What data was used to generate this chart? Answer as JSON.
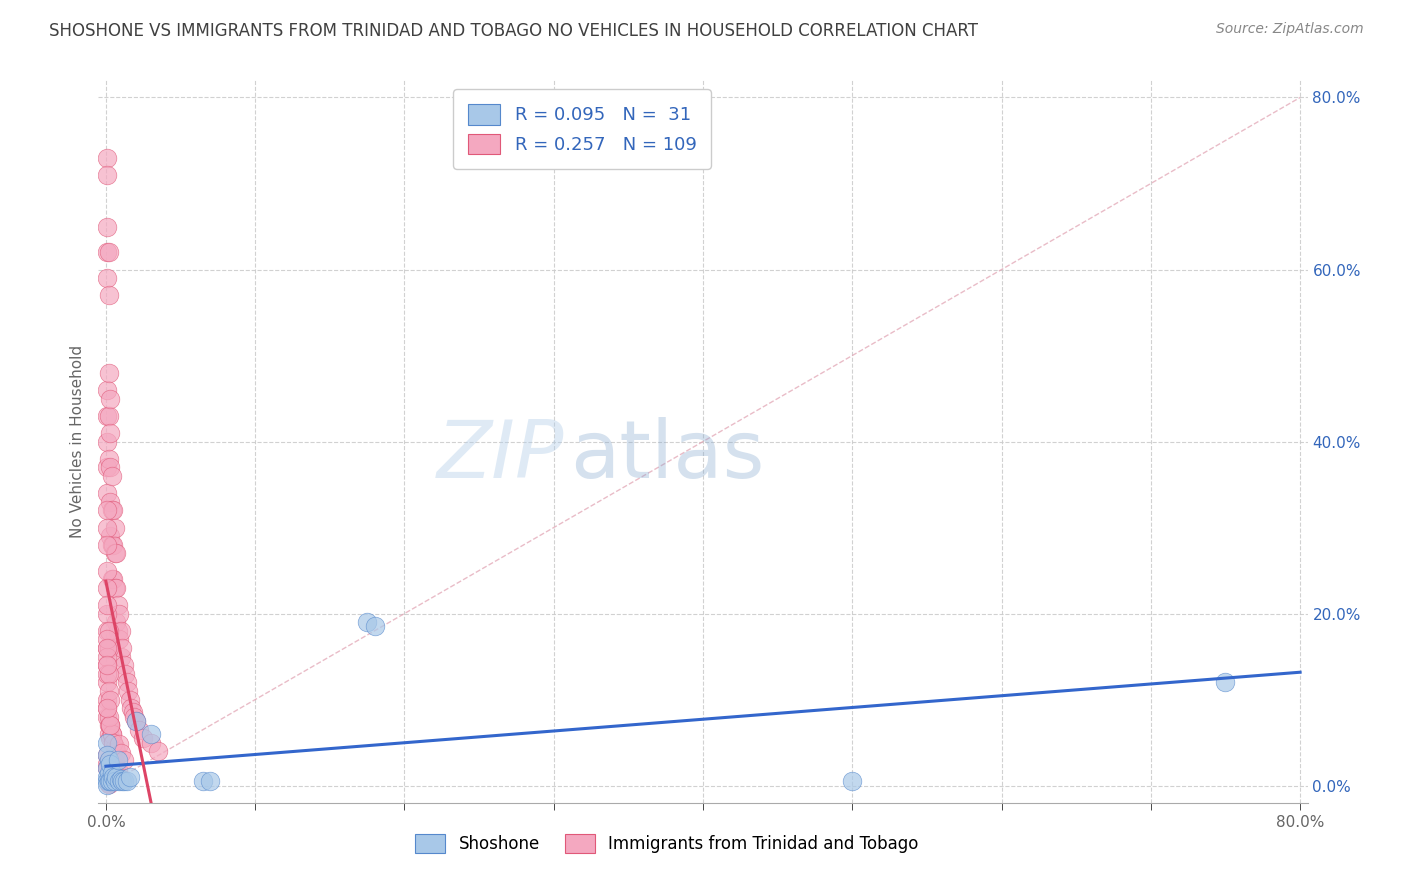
{
  "title": "SHOSHONE VS IMMIGRANTS FROM TRINIDAD AND TOBAGO NO VEHICLES IN HOUSEHOLD CORRELATION CHART",
  "source": "Source: ZipAtlas.com",
  "xlabel_bottom": [
    "Shoshone",
    "Immigrants from Trinidad and Tobago"
  ],
  "ylabel": "No Vehicles in Household",
  "xmin": 0.0,
  "xmax": 0.8,
  "ymin": 0.0,
  "ymax": 0.8,
  "right_yticks": [
    0.0,
    0.2,
    0.4,
    0.6,
    0.8
  ],
  "right_ytick_labels": [
    "0.0%",
    "20.0%",
    "40.0%",
    "60.0%",
    "80.0%"
  ],
  "shoshone_color": "#a8c8e8",
  "tt_color": "#f4a8c0",
  "shoshone_edge": "#5588cc",
  "tt_edge": "#e05878",
  "line_blue": "#3366cc",
  "line_pink": "#dd4466",
  "diag_color": "#e0a0b0",
  "R_shoshone": 0.095,
  "N_shoshone": 31,
  "R_tt": 0.257,
  "N_tt": 109,
  "watermark_zip": "ZIP",
  "watermark_atlas": "atlas",
  "background": "#ffffff",
  "grid_color": "#cccccc",
  "title_color": "#404040",
  "right_axis_color": "#3366bb",
  "shoshone_x": [
    0.001,
    0.001,
    0.001,
    0.001,
    0.001,
    0.001,
    0.002,
    0.002,
    0.002,
    0.003,
    0.003,
    0.004,
    0.004,
    0.005,
    0.006,
    0.007,
    0.008,
    0.009,
    0.01,
    0.011,
    0.012,
    0.014,
    0.016,
    0.02,
    0.03,
    0.065,
    0.07,
    0.175,
    0.18,
    0.5,
    0.75
  ],
  "shoshone_y": [
    0.05,
    0.035,
    0.02,
    0.01,
    0.005,
    0.001,
    0.03,
    0.015,
    0.005,
    0.025,
    0.005,
    0.015,
    0.005,
    0.01,
    0.005,
    0.01,
    0.03,
    0.005,
    0.008,
    0.005,
    0.005,
    0.005,
    0.01,
    0.075,
    0.06,
    0.005,
    0.005,
    0.19,
    0.185,
    0.005,
    0.12
  ],
  "tt_x": [
    0.001,
    0.001,
    0.001,
    0.001,
    0.001,
    0.001,
    0.001,
    0.001,
    0.001,
    0.001,
    0.002,
    0.002,
    0.002,
    0.002,
    0.002,
    0.003,
    0.003,
    0.003,
    0.003,
    0.003,
    0.004,
    0.004,
    0.004,
    0.004,
    0.005,
    0.005,
    0.005,
    0.006,
    0.006,
    0.006,
    0.007,
    0.007,
    0.007,
    0.008,
    0.008,
    0.009,
    0.009,
    0.01,
    0.01,
    0.011,
    0.012,
    0.013,
    0.014,
    0.015,
    0.016,
    0.017,
    0.018,
    0.019,
    0.02,
    0.022,
    0.025,
    0.03,
    0.035,
    0.001,
    0.001,
    0.001,
    0.001,
    0.001,
    0.002,
    0.002,
    0.003,
    0.003,
    0.004,
    0.005,
    0.006,
    0.007,
    0.001,
    0.001,
    0.002,
    0.002,
    0.001,
    0.001,
    0.001,
    0.003,
    0.004,
    0.005,
    0.001,
    0.001,
    0.002,
    0.001,
    0.001,
    0.001,
    0.002,
    0.003,
    0.004,
    0.001,
    0.002,
    0.003,
    0.001,
    0.001,
    0.001,
    0.002,
    0.003,
    0.001,
    0.001,
    0.001,
    0.001,
    0.002,
    0.002,
    0.002,
    0.003,
    0.004,
    0.005,
    0.006,
    0.007,
    0.008,
    0.009,
    0.01,
    0.012
  ],
  "tt_y": [
    0.73,
    0.71,
    0.65,
    0.62,
    0.59,
    0.46,
    0.43,
    0.4,
    0.37,
    0.34,
    0.62,
    0.57,
    0.48,
    0.43,
    0.38,
    0.45,
    0.41,
    0.37,
    0.33,
    0.29,
    0.36,
    0.32,
    0.28,
    0.24,
    0.32,
    0.28,
    0.24,
    0.3,
    0.27,
    0.23,
    0.27,
    0.23,
    0.19,
    0.21,
    0.18,
    0.2,
    0.17,
    0.18,
    0.15,
    0.16,
    0.14,
    0.13,
    0.12,
    0.11,
    0.1,
    0.09,
    0.085,
    0.08,
    0.075,
    0.065,
    0.055,
    0.05,
    0.04,
    0.16,
    0.14,
    0.12,
    0.1,
    0.08,
    0.07,
    0.06,
    0.07,
    0.055,
    0.06,
    0.05,
    0.045,
    0.04,
    0.2,
    0.18,
    0.18,
    0.16,
    0.25,
    0.23,
    0.21,
    0.07,
    0.06,
    0.05,
    0.15,
    0.13,
    0.13,
    0.32,
    0.3,
    0.28,
    0.03,
    0.025,
    0.02,
    0.09,
    0.08,
    0.07,
    0.17,
    0.16,
    0.14,
    0.11,
    0.1,
    0.09,
    0.035,
    0.025,
    0.02,
    0.005,
    0.003,
    0.002,
    0.012,
    0.01,
    0.008,
    0.028,
    0.022,
    0.018,
    0.048,
    0.038,
    0.03
  ]
}
